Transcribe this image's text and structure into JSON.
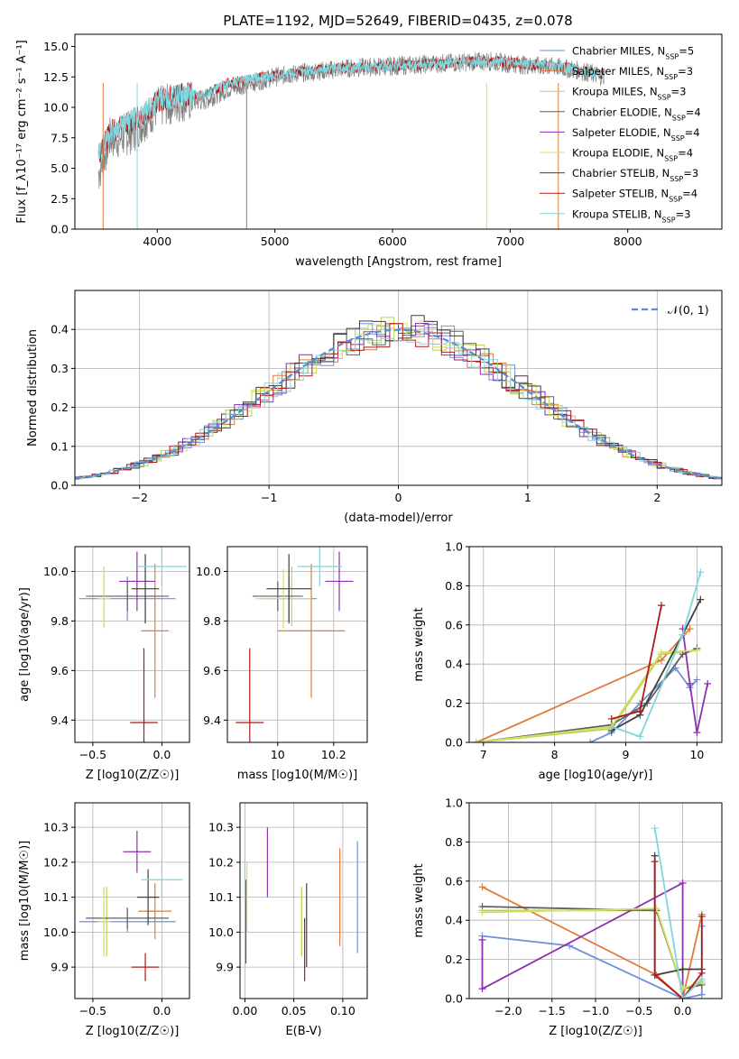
{
  "page_title": "PLATE=1192, MJD=52649, FIBERID=0435, z=0.078",
  "colors": {
    "Chabrier MILES": "#6f90dc",
    "Salpeter MILES": "#e07b39",
    "Kroupa MILES": "#b6d452",
    "Chabrier ELODIE": "#606060",
    "Salpeter ELODIE": "#8e2fb0",
    "Kroupa ELODIE": "#d4e060",
    "Chabrier STELIB": "#3f3f3f",
    "Salpeter STELIB": "#b01818",
    "Kroupa STELIB": "#7fd6dc",
    "gaussian": "#5b8bd6",
    "grid": "#b0b0b0"
  },
  "legend_models": [
    {
      "name": "Chabrier MILES",
      "label": "Chabrier MILES, N",
      "nssp": "=5"
    },
    {
      "name": "Salpeter MILES",
      "label": "Salpeter MILES, N",
      "nssp": "=3"
    },
    {
      "name": "Kroupa MILES",
      "label": "Kroupa MILES, N",
      "nssp": "=3"
    },
    {
      "name": "Chabrier ELODIE",
      "label": "Chabrier ELODIE, N",
      "nssp": "=4"
    },
    {
      "name": "Salpeter ELODIE",
      "label": "Salpeter ELODIE, N",
      "nssp": "=4"
    },
    {
      "name": "Kroupa ELODIE",
      "label": "Kroupa ELODIE, N",
      "nssp": "=4"
    },
    {
      "name": "Chabrier STELIB",
      "label": "Chabrier STELIB, N",
      "nssp": "=3"
    },
    {
      "name": "Salpeter STELIB",
      "label": "Salpeter STELIB, N",
      "nssp": "=4"
    },
    {
      "name": "Kroupa STELIB",
      "label": "Kroupa STELIB, N",
      "nssp": "=3"
    }
  ],
  "chart_data": [
    {
      "id": "spectrum",
      "type": "line",
      "title": "PLATE=1192, MJD=52649, FIBERID=0435, z=0.078",
      "xlabel": "wavelength [Angstrom, rest frame]",
      "ylabel": "Flux [f_λ 10^-17 erg cm^-2 s^-1 A^-1]",
      "xlim": [
        3300,
        8800
      ],
      "ylim": [
        0,
        16
      ],
      "xticks": [
        4000,
        5000,
        6000,
        7000,
        8000
      ],
      "yticks": [
        0.0,
        2.5,
        5.0,
        7.5,
        10.0,
        12.5,
        15.0
      ],
      "legend_position": "right",
      "data_series": {
        "name": "data",
        "color": "#808080",
        "x": [
          3500,
          3600,
          3700,
          3800,
          3900,
          4000,
          4200,
          4400,
          4600,
          4800,
          5000,
          5200,
          5400,
          5600,
          5800,
          6000,
          6200,
          6400,
          6600,
          6800,
          7000,
          7200,
          7400,
          7600,
          7800
        ],
        "y": [
          4.5,
          7.5,
          7.5,
          8.0,
          9.0,
          10.0,
          10.5,
          10.5,
          11.5,
          12.0,
          12.5,
          12.8,
          13.0,
          13.2,
          13.3,
          13.4,
          13.5,
          13.6,
          13.7,
          13.8,
          13.6,
          13.4,
          13.3,
          13.0,
          12.5
        ]
      },
      "model_series": {
        "name": "model",
        "color": "#7fd6dc",
        "x": [
          3500,
          3600,
          3700,
          3800,
          3900,
          4000,
          4200,
          4400,
          4600,
          4800,
          5000,
          5200,
          5400,
          5600,
          5800,
          6000,
          6200,
          6400,
          6600,
          6800,
          7000,
          7200,
          7400,
          7600,
          7800
        ],
        "y": [
          6.0,
          8.0,
          8.5,
          9.0,
          9.5,
          10.5,
          11.0,
          11.0,
          12.0,
          12.3,
          12.6,
          12.9,
          13.1,
          13.2,
          13.3,
          13.4,
          13.5,
          13.6,
          13.7,
          13.8,
          13.7,
          13.5,
          13.4,
          13.1,
          12.6
        ]
      }
    },
    {
      "id": "residuals",
      "type": "line",
      "xlabel": "(data-model)/error",
      "ylabel": "Normed distribution",
      "xlim": [
        -2.5,
        2.5
      ],
      "ylim": [
        0,
        0.5
      ],
      "xticks": [
        -2,
        -1,
        0,
        1,
        2
      ],
      "yticks": [
        0.0,
        0.1,
        0.2,
        0.3,
        0.4
      ],
      "legend": "N(0,1)",
      "legend_position": "top-right",
      "gaussian": {
        "mean": 0,
        "sigma": 1
      },
      "histogram_bin_width": 0.1
    },
    {
      "id": "age-vs-Z",
      "type": "scatter",
      "xlabel": "Z [log10(Z/Z☉)]",
      "ylabel": "age  [log10(age/yr)]",
      "xlim": [
        -0.63,
        0.2
      ],
      "ylim": [
        9.31,
        10.1
      ],
      "xticks": [
        -0.5,
        0.0
      ],
      "xticklabels": [
        "−0.5",
        "0.0"
      ],
      "yticks": [
        9.4,
        9.6,
        9.8,
        10.0
      ],
      "points": [
        {
          "model": "Chabrier MILES",
          "x": -0.25,
          "y": 9.89,
          "xerr": 0.35,
          "yerr": 0.09
        },
        {
          "model": "Salpeter MILES",
          "x": -0.05,
          "y": 9.76,
          "xerr": 0.1,
          "yerr": 0.27
        },
        {
          "model": "Kroupa MILES",
          "x": -0.42,
          "y": 9.9,
          "xerr": 0.0,
          "yerr": 0.12
        },
        {
          "model": "Chabrier ELODIE",
          "x": -0.25,
          "y": 9.9,
          "xerr": 0.3,
          "yerr": 0.06
        },
        {
          "model": "Salpeter ELODIE",
          "x": -0.18,
          "y": 9.96,
          "xerr": 0.13,
          "yerr": 0.12
        },
        {
          "model": "Kroupa ELODIE",
          "x": -0.42,
          "y": 9.89,
          "xerr": 0.05,
          "yerr": 0.12
        },
        {
          "model": "Chabrier STELIB",
          "x": -0.12,
          "y": 9.93,
          "xerr": 0.1,
          "yerr": 0.14
        },
        {
          "model": "Salpeter STELIB",
          "x": -0.13,
          "y": 9.39,
          "xerr": 0.1,
          "yerr": 0.3
        },
        {
          "model": "Kroupa STELIB",
          "x": 0.0,
          "y": 10.02,
          "xerr": 0.18,
          "yerr": 0.08
        }
      ]
    },
    {
      "id": "age-vs-mass",
      "type": "scatter",
      "xlabel": "mass [log10(M/M☉)]",
      "ylabel": "",
      "xlim": [
        9.82,
        10.32
      ],
      "ylim": [
        9.31,
        10.1
      ],
      "xticks": [
        10.0,
        10.2
      ],
      "yticks": [
        9.4,
        9.6,
        9.8,
        10.0
      ],
      "points": [
        {
          "model": "Chabrier MILES",
          "x": 10.04,
          "y": 9.89,
          "xerr": 0.1,
          "yerr": 0.09
        },
        {
          "model": "Salpeter MILES",
          "x": 10.12,
          "y": 9.76,
          "xerr": 0.12,
          "yerr": 0.27
        },
        {
          "model": "Kroupa MILES",
          "x": 10.05,
          "y": 9.9,
          "xerr": 0.0,
          "yerr": 0.12
        },
        {
          "model": "Chabrier ELODIE",
          "x": 10.0,
          "y": 9.9,
          "xerr": 0.09,
          "yerr": 0.06
        },
        {
          "model": "Salpeter ELODIE",
          "x": 10.22,
          "y": 9.96,
          "xerr": 0.05,
          "yerr": 0.12
        },
        {
          "model": "Kroupa ELODIE",
          "x": 10.02,
          "y": 9.89,
          "xerr": 0.1,
          "yerr": 0.12
        },
        {
          "model": "Chabrier STELIB",
          "x": 10.04,
          "y": 9.93,
          "xerr": 0.08,
          "yerr": 0.14
        },
        {
          "model": "Salpeter STELIB",
          "x": 9.9,
          "y": 9.39,
          "xerr": 0.05,
          "yerr": 0.3
        },
        {
          "model": "Kroupa STELIB",
          "x": 10.15,
          "y": 10.02,
          "xerr": 0.08,
          "yerr": 0.08
        }
      ]
    },
    {
      "id": "mass-weight-vs-age",
      "type": "line",
      "xlabel": "age  [log10(age/yr)]",
      "ylabel": "mass weight",
      "xlim": [
        6.8,
        10.35
      ],
      "ylim": [
        0,
        1.0
      ],
      "xticks": [
        7,
        8,
        9,
        10
      ],
      "yticks": [
        0.0,
        0.2,
        0.4,
        0.6,
        0.8,
        1.0
      ],
      "series": [
        {
          "model": "Chabrier MILES",
          "x": [
            8.5,
            8.8,
            9.2,
            9.7,
            9.9,
            10.0
          ],
          "y": [
            0.0,
            0.05,
            0.2,
            0.38,
            0.28,
            0.32
          ]
        },
        {
          "model": "Salpeter MILES",
          "x": [
            6.9,
            9.5,
            9.9
          ],
          "y": [
            0.0,
            0.42,
            0.58
          ]
        },
        {
          "model": "Kroupa MILES",
          "x": [
            6.9,
            8.8,
            9.5,
            10.0
          ],
          "y": [
            0.0,
            0.07,
            0.45,
            0.47
          ]
        },
        {
          "model": "Chabrier ELODIE",
          "x": [
            6.9,
            8.8,
            9.3,
            9.8,
            10.0
          ],
          "y": [
            0.0,
            0.09,
            0.2,
            0.45,
            0.48
          ]
        },
        {
          "model": "Salpeter ELODIE",
          "x": [
            9.8,
            9.9,
            10.0,
            10.15
          ],
          "y": [
            0.58,
            0.3,
            0.05,
            0.3
          ]
        },
        {
          "model": "Kroupa ELODIE",
          "x": [
            6.9,
            8.8,
            9.5,
            10.0
          ],
          "y": [
            0.0,
            0.08,
            0.46,
            0.47
          ]
        },
        {
          "model": "Chabrier STELIB",
          "x": [
            8.8,
            9.2,
            9.8,
            10.05
          ],
          "y": [
            0.06,
            0.14,
            0.55,
            0.73
          ]
        },
        {
          "model": "Salpeter STELIB",
          "x": [
            8.8,
            9.2,
            9.5
          ],
          "y": [
            0.12,
            0.16,
            0.7
          ]
        },
        {
          "model": "Kroupa STELIB",
          "x": [
            8.8,
            9.2,
            9.8,
            10.05
          ],
          "y": [
            0.08,
            0.03,
            0.55,
            0.87
          ]
        }
      ]
    },
    {
      "id": "mass-vs-Z",
      "type": "scatter",
      "xlabel": "Z [log10(Z/Z☉)]",
      "ylabel": "mass [log10(M/M☉)]",
      "xlim": [
        -0.63,
        0.2
      ],
      "ylim": [
        9.81,
        10.37
      ],
      "xticks": [
        -0.5,
        0.0
      ],
      "xticklabels": [
        "−0.5",
        "0.0"
      ],
      "yticks": [
        9.9,
        10.0,
        10.1,
        10.2,
        10.3
      ],
      "points": [
        {
          "model": "Chabrier MILES",
          "x": -0.25,
          "y": 10.03,
          "xerr": 0.35,
          "yerr": 0.03
        },
        {
          "model": "Salpeter MILES",
          "x": -0.05,
          "y": 10.06,
          "xerr": 0.12,
          "yerr": 0.08
        },
        {
          "model": "Kroupa MILES",
          "x": -0.4,
          "y": 10.03,
          "xerr": 0.0,
          "yerr": 0.1
        },
        {
          "model": "Chabrier ELODIE",
          "x": -0.25,
          "y": 10.04,
          "xerr": 0.3,
          "yerr": 0.03
        },
        {
          "model": "Salpeter ELODIE",
          "x": -0.18,
          "y": 10.23,
          "xerr": 0.1,
          "yerr": 0.06
        },
        {
          "model": "Kroupa ELODIE",
          "x": -0.42,
          "y": 10.03,
          "xerr": 0.05,
          "yerr": 0.1
        },
        {
          "model": "Chabrier STELIB",
          "x": -0.1,
          "y": 10.1,
          "xerr": 0.08,
          "yerr": 0.08
        },
        {
          "model": "Salpeter STELIB",
          "x": -0.12,
          "y": 9.9,
          "xerr": 0.1,
          "yerr": 0.04
        },
        {
          "model": "Kroupa STELIB",
          "x": 0.0,
          "y": 10.15,
          "xerr": 0.15,
          "yerr": 0.05
        }
      ]
    },
    {
      "id": "mass-vs-EBV",
      "type": "scatter",
      "xlabel": "E(B-V)",
      "ylabel": "",
      "xlim": [
        -0.005,
        0.125
      ],
      "ylim": [
        9.81,
        10.37
      ],
      "xticks": [
        0.0,
        0.05,
        0.1
      ],
      "xticklabels": [
        "0.00",
        "0.05",
        "0.10"
      ],
      "yticks": [
        9.9,
        10.0,
        10.1,
        10.2,
        10.3
      ],
      "points": [
        {
          "model": "Chabrier MILES",
          "x": 0.115,
          "y": 10.1,
          "xerr": 0,
          "yerr": 0.16
        },
        {
          "model": "Salpeter MILES",
          "x": 0.097,
          "y": 10.1,
          "xerr": 0,
          "yerr": 0.14
        },
        {
          "model": "Kroupa MILES",
          "x": 0.058,
          "y": 10.03,
          "xerr": 0,
          "yerr": 0.1
        },
        {
          "model": "Chabrier ELODIE",
          "x": 0.001,
          "y": 10.03,
          "xerr": 0,
          "yerr": 0.12
        },
        {
          "model": "Salpeter ELODIE",
          "x": 0.023,
          "y": 10.2,
          "xerr": 0,
          "yerr": 0.1
        },
        {
          "model": "Kroupa ELODIE",
          "x": 0.002,
          "y": 10.1,
          "xerr": 0,
          "yerr": 0.1
        },
        {
          "model": "Chabrier STELIB",
          "x": 0.063,
          "y": 10.02,
          "xerr": 0,
          "yerr": 0.12
        },
        {
          "model": "Salpeter STELIB",
          "x": 0.061,
          "y": 9.95,
          "xerr": 0,
          "yerr": 0.09
        },
        {
          "model": "Kroupa STELIB",
          "x": 0.0,
          "y": 10.15,
          "xerr": 0,
          "yerr": 0.06
        }
      ]
    },
    {
      "id": "mass-weight-vs-Z",
      "type": "line",
      "xlabel": "Z [log10(Z/Z☉)]",
      "ylabel": "mass weight",
      "xlim": [
        -2.45,
        0.45
      ],
      "ylim": [
        0,
        1.0
      ],
      "xticks": [
        -2.0,
        -1.5,
        -1.0,
        -0.5,
        0.0
      ],
      "xticklabels": [
        "−2.0",
        "−1.5",
        "−1.0",
        "−0.5",
        "0.0"
      ],
      "yticks": [
        0.0,
        0.2,
        0.4,
        0.6,
        0.8,
        1.0
      ],
      "series": [
        {
          "model": "Chabrier MILES",
          "x": [
            -2.3,
            -1.3,
            0.0,
            0.22,
            0.22
          ],
          "y": [
            0.32,
            0.27,
            0.0,
            0.02,
            0.37
          ]
        },
        {
          "model": "Salpeter MILES",
          "x": [
            -2.3,
            -0.3,
            0.0,
            0.22
          ],
          "y": [
            0.57,
            0.12,
            0.0,
            0.43
          ]
        },
        {
          "model": "Kroupa MILES",
          "x": [
            -2.3,
            -0.3,
            0.0,
            0.22
          ],
          "y": [
            0.45,
            0.45,
            0.05,
            0.08
          ]
        },
        {
          "model": "Chabrier ELODIE",
          "x": [
            -2.3,
            -0.3,
            0.0,
            0.22
          ],
          "y": [
            0.47,
            0.45,
            0.05,
            0.07
          ]
        },
        {
          "model": "Salpeter ELODIE",
          "x": [
            -2.3,
            -2.3,
            0.0,
            0.0
          ],
          "y": [
            0.3,
            0.05,
            0.59,
            0.0
          ]
        },
        {
          "model": "Kroupa ELODIE",
          "x": [
            -2.3,
            -0.3,
            0.0,
            0.22
          ],
          "y": [
            0.44,
            0.46,
            0.05,
            0.09
          ]
        },
        {
          "model": "Chabrier STELIB",
          "x": [
            -0.32,
            -0.32,
            0.0,
            0.22
          ],
          "y": [
            0.73,
            0.12,
            0.15,
            0.15
          ]
        },
        {
          "model": "Salpeter STELIB",
          "x": [
            -0.32,
            -0.32,
            0.0,
            0.22,
            0.22
          ],
          "y": [
            0.7,
            0.12,
            0.0,
            0.13,
            0.42
          ]
        },
        {
          "model": "Kroupa STELIB",
          "x": [
            -0.32,
            0.0,
            0.22
          ],
          "y": [
            0.87,
            0.0,
            0.1
          ]
        }
      ]
    }
  ]
}
